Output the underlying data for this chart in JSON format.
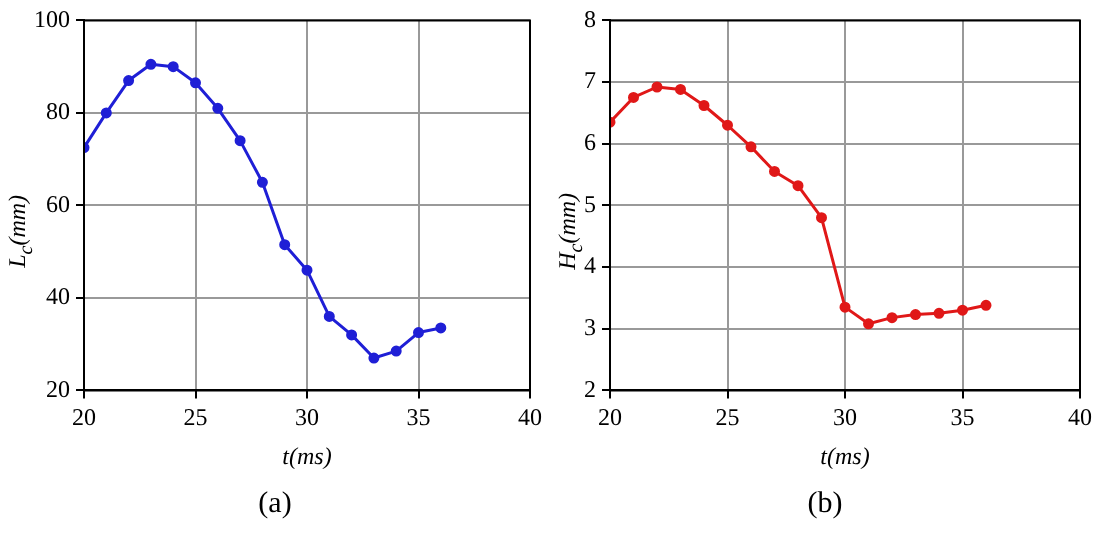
{
  "chart_data": [
    {
      "type": "line",
      "x": [
        20,
        21,
        22,
        23,
        24,
        25,
        26,
        27,
        28,
        29,
        30,
        31,
        32,
        33,
        34,
        35,
        36
      ],
      "series": [
        {
          "color": "#1f1fd6",
          "values": [
            72.5,
            80,
            87,
            90.5,
            90,
            86.5,
            81,
            74,
            65,
            51.5,
            46,
            36,
            32,
            27,
            28.5,
            32.5,
            33.5
          ]
        }
      ],
      "xlabel": "t(ms)",
      "ylabel": "L$_{c}$(mm)",
      "xlim": [
        20,
        40
      ],
      "xticks": [
        20,
        25,
        30,
        35,
        40
      ],
      "ylim": [
        20,
        100
      ],
      "yticks": [
        20,
        40,
        60,
        80,
        100
      ],
      "grid": true,
      "legend": false,
      "marker": "circle",
      "line_style": "solid",
      "annotations": [
        "(a)"
      ]
    },
    {
      "type": "line",
      "x": [
        20,
        21,
        22,
        23,
        24,
        25,
        26,
        27,
        28,
        29,
        30,
        31,
        32,
        33,
        34,
        35,
        36
      ],
      "series": [
        {
          "color": "#e01818",
          "values": [
            6.35,
            6.75,
            6.92,
            6.88,
            6.62,
            6.3,
            5.95,
            5.55,
            5.32,
            4.8,
            3.35,
            3.08,
            3.18,
            3.23,
            3.25,
            3.3,
            3.38
          ]
        }
      ],
      "xlabel": "t(ms)",
      "ylabel": "H$_{c}$(mm)",
      "xlim": [
        20,
        40
      ],
      "xticks": [
        20,
        25,
        30,
        35,
        40
      ],
      "ylim": [
        2,
        8
      ],
      "yticks": [
        2,
        3,
        4,
        5,
        6,
        7,
        8
      ],
      "grid": true,
      "legend": false,
      "marker": "circle",
      "line_style": "solid",
      "annotations": [
        "(b)"
      ]
    }
  ]
}
